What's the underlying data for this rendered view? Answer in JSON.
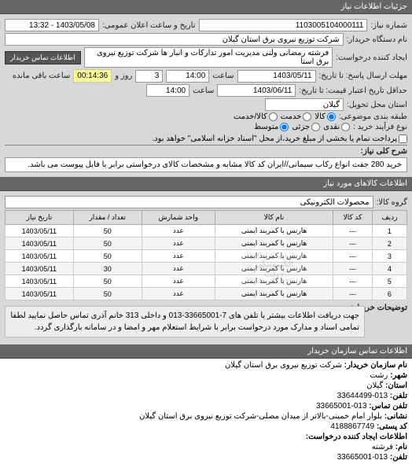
{
  "header": {
    "title": "جزئیات اطلاعات نیاز"
  },
  "form": {
    "req_no_label": "شماره نیاز:",
    "req_no": "1103005104000111",
    "announce_label": "تاریخ و ساعت اعلان عمومی:",
    "announce_val": "1403/05/08 - 13:32",
    "buyer_label": "نام دستگاه خریدار:",
    "buyer_val": "شرکت توزیع نیروی برق استان گیلان",
    "creator_label": "ایجاد کننده درخواست:",
    "creator_val": "فرشته رمضانی ولنی مدیریت امور تدارکات و انبار ها شرکت توزیع نیروی برق استا",
    "contact_btn": "اطلاعات تماس خریدار",
    "deadline_label": "مهلت ارسال پاسخ: تا تاریخ:",
    "deadline_date": "1403/05/11",
    "time_label": "ساعت",
    "deadline_time": "14:00",
    "days_rem": "3",
    "and_label": "روز و",
    "time_rem": "00:14:36",
    "rem_label": "ساعت باقی مانده",
    "valid_label": "حداقل تاریخ اعتبار قیمت: تا تاریخ:",
    "valid_date": "1403/06/11",
    "valid_time": "14:00",
    "deliver_addr_label": "استان محل تحویل:",
    "deliver_addr": "گیلان",
    "pack_label": "طبقه بندی موضوعی:",
    "radio_goods": "کالا",
    "radio_service": "خدمت",
    "radio_both": "کالا/خدمت",
    "goods_checked": true,
    "buy_type_label": "نوع فرآیند خرید :",
    "radio_cash": "نقدی",
    "radio_partial": "جزئی",
    "radio_medium": "متوسط",
    "radio_check": "پرداخت تمام یا بخشی از مبلغ خرید،از محل \"اسناد خزانه اسلامی\" خواهد بود.",
    "medium_checked": true,
    "desc_label": "شرح کلی نیاز:",
    "desc_text": "خرید 280 جفت انواع رکاب سیمانی//ایران کد کالا مشابه و مشخصات کالای درخواستی برابر با فایل پیوست می باشد."
  },
  "goods": {
    "header": "اطلاعات کالاهای مورد نیاز",
    "group_label": "گروه کالا:",
    "group_val": "محصولات الکترونیکی",
    "cols": [
      "ردیف",
      "کد کالا",
      "نام کالا",
      "واحد شمارش",
      "تعداد / مقدار",
      "تاریخ نیاز"
    ],
    "rows": [
      [
        "1",
        "---",
        "هارنس با کمربند ایمنی",
        "عدد",
        "50",
        "1403/05/11"
      ],
      [
        "2",
        "---",
        "هارنس با کمربند ایمنی",
        "عدد",
        "50",
        "1403/05/11"
      ],
      [
        "3",
        "---",
        "هارنس با کمربند ایمنی",
        "عدد",
        "50",
        "1403/05/11"
      ],
      [
        "4",
        "---",
        "هارنس با کمربند ایمنی",
        "عدد",
        "30",
        "1403/05/11"
      ],
      [
        "5",
        "---",
        "هارنس با کمربند ایمنی",
        "عدد",
        "50",
        "1403/05/11"
      ],
      [
        "6",
        "---",
        "هارنس با کمربند ایمنی",
        "عدد",
        "50",
        "1403/05/11"
      ]
    ],
    "watermarks": [
      "",
      "",
      "سامانه تدارکات",
      "الکترونیکی دولت",
      "۰۹-۰۸۸۳۴۹",
      "",
      ""
    ],
    "note_label": "توضیحات خریدار:",
    "note_text": "جهت دریافت اطلاعات بیشتر با تلفن های 7-33665001-013 و داخلی 313 خانم آذری تماس حاصل نمایید لطفا تمامی اسناد و مدارک مورد درخواست برابر با شرایط استعلام مهر و امضا و در سامانه بارگذاری گردد."
  },
  "contact": {
    "header": "اطلاعات تماس سازمان خریدار",
    "org_label": "نام سازمان خریدار:",
    "org_val": "شرکت توزیع نیروی برق استان گیلان",
    "city_label": "شهر:",
    "city_val": "رشت",
    "prov_label": "استان:",
    "prov_val": "گیلان",
    "phone_label": "تلفن:",
    "phone_val": "013-33644499",
    "fax_label": "تلفن تماس:",
    "fax_val": "013-33665001",
    "addr_label": "نشانی:",
    "addr_val": "بلوار امام خمینی-بالاتر از میدان مصلی-شرکت توزیع نیروی برق استان گیلان",
    "post_label": "کد پستی:",
    "post_val": "4188867749",
    "creator2_label": "اطلاعات ایجاد کننده درخواست:",
    "name2_label": "نام:",
    "name2_val": "فرشته",
    "phone2_label": "تلفن:",
    "phone2_val": "013-33665001"
  }
}
